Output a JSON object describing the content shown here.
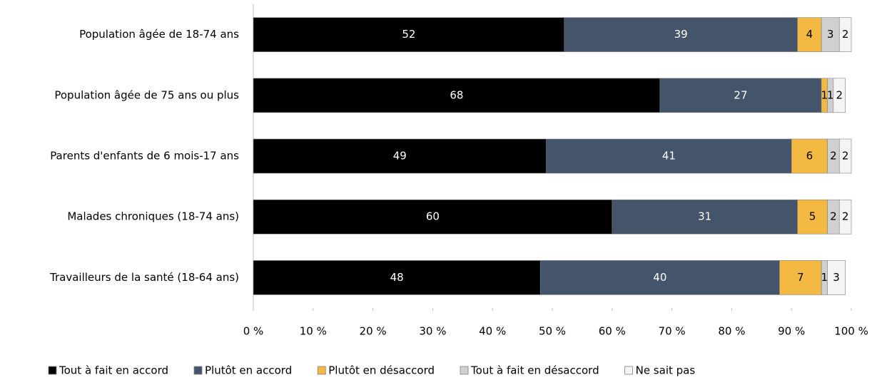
{
  "chart_data": {
    "type": "stacked_barh",
    "categories": [
      "Population âgée de 18-74 ans",
      "Population âgée de 75 ans ou plus",
      "Parents d'enfants de 6 mois-17 ans",
      "Malades chroniques (18-74 ans)",
      "Travailleurs de la santé (18-64 ans)"
    ],
    "series": [
      {
        "name": "Tout à fait en accord",
        "color": "#000000",
        "values": [
          52,
          68,
          49,
          60,
          48
        ]
      },
      {
        "name": "Plutôt en accord",
        "color": "#44546a",
        "values": [
          39,
          27,
          41,
          31,
          40
        ]
      },
      {
        "name": "Plutôt en désaccord",
        "color": "#f4b942",
        "values": [
          4,
          1,
          6,
          5,
          7
        ]
      },
      {
        "name": "Tout à fait en désaccord",
        "color": "#d0d0d0",
        "values": [
          3,
          1,
          2,
          2,
          1
        ]
      },
      {
        "name": "Ne sait pas",
        "color": "#f4f4f4",
        "values": [
          2,
          2,
          2,
          2,
          3
        ]
      }
    ],
    "xlim": [
      0,
      100
    ],
    "xticks": [
      {
        "value": 0,
        "label": "0 %"
      },
      {
        "value": 10,
        "label": "10 %"
      },
      {
        "value": 20,
        "label": "20 %"
      },
      {
        "value": 30,
        "label": "30 %"
      },
      {
        "value": 40,
        "label": "40 %"
      },
      {
        "value": 50,
        "label": "50 %"
      },
      {
        "value": 60,
        "label": "60 %"
      },
      {
        "value": 70,
        "label": "70 %"
      },
      {
        "value": 80,
        "label": "80 %"
      },
      {
        "value": 90,
        "label": "90 %"
      },
      {
        "value": 100,
        "label": "100 %"
      }
    ],
    "legend": "bottom"
  }
}
